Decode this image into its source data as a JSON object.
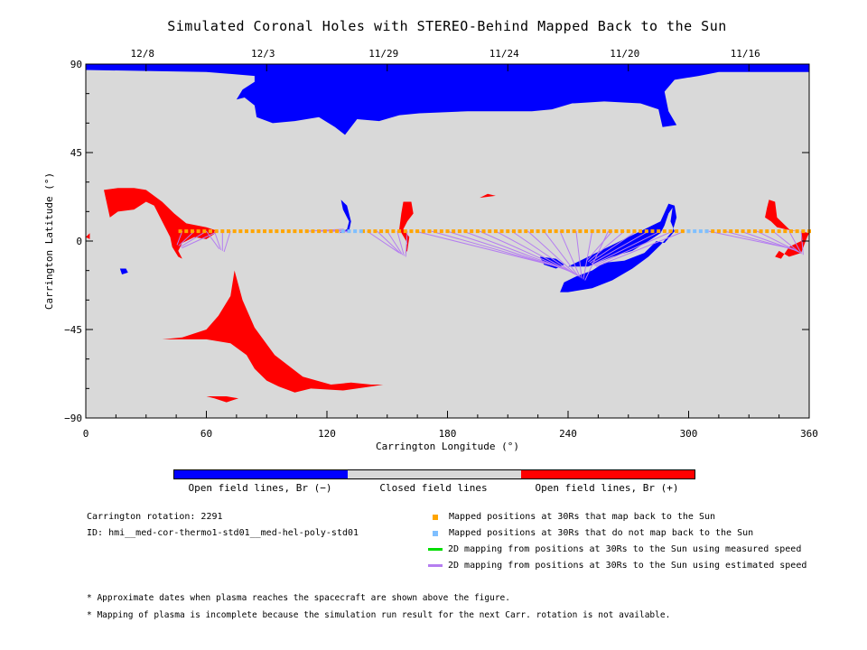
{
  "figure": {
    "title": "Simulated Coronal Holes with STEREO-Behind Mapped Back to the Sun"
  },
  "chart_data": {
    "type": "map",
    "xlabel": "Carrington Longitude (°)",
    "ylabel": "Carrington Latitude (°)",
    "xlim": [
      0,
      360
    ],
    "ylim": [
      -90,
      90
    ],
    "xticks": [
      0,
      60,
      120,
      180,
      240,
      300,
      360
    ],
    "yticks": [
      90,
      45,
      0,
      -45,
      -90
    ],
    "top_axis": {
      "dates": [
        {
          "label": "12/8",
          "lon": 30
        },
        {
          "label": "12/3",
          "lon": 90
        },
        {
          "label": "11/29",
          "lon": 150
        },
        {
          "label": "11/24",
          "lon": 210
        },
        {
          "label": "11/20",
          "lon": 270
        },
        {
          "label": "11/16",
          "lon": 330
        }
      ]
    },
    "colors": {
      "open_negative": "#0000ff",
      "closed": "#d9d9d9",
      "open_positive": "#ff0000",
      "mapped_back": "#ffa500",
      "not_mapped": "#7fbfff",
      "measured_speed": "#00dd00",
      "estimated_speed": "#b57ef0"
    },
    "regions": {
      "open_negative": [
        [
          [
            0,
            90
          ],
          [
            360,
            90
          ],
          [
            360,
            86
          ],
          [
            315,
            86
          ],
          [
            305,
            84
          ],
          [
            293,
            82
          ],
          [
            288,
            76
          ],
          [
            290,
            66
          ],
          [
            294,
            59
          ],
          [
            287,
            58
          ],
          [
            285,
            67
          ],
          [
            276,
            70
          ],
          [
            258,
            71
          ],
          [
            242,
            70
          ],
          [
            232,
            67
          ],
          [
            222,
            66
          ],
          [
            190,
            66
          ],
          [
            166,
            65
          ],
          [
            156,
            64
          ],
          [
            146,
            61
          ],
          [
            135,
            62
          ],
          [
            129,
            54
          ],
          [
            124,
            58
          ],
          [
            116,
            63
          ],
          [
            104,
            61
          ],
          [
            93,
            60
          ],
          [
            85,
            63
          ],
          [
            84,
            69
          ],
          [
            79,
            73
          ],
          [
            75,
            72
          ],
          [
            78,
            77
          ],
          [
            84,
            81
          ],
          [
            84,
            84
          ],
          [
            60,
            86
          ],
          [
            0,
            87
          ]
        ],
        [
          [
            240,
            -13
          ],
          [
            250,
            -13
          ],
          [
            262,
            -8
          ],
          [
            272,
            -5
          ],
          [
            280,
            0
          ],
          [
            286,
            4
          ],
          [
            288,
            8
          ],
          [
            290,
            14
          ],
          [
            292,
            17
          ],
          [
            291,
            10
          ],
          [
            293,
            5
          ],
          [
            288,
            -1
          ],
          [
            284,
            0
          ],
          [
            278,
            -6
          ],
          [
            268,
            -10
          ],
          [
            258,
            -11
          ],
          [
            252,
            -15
          ],
          [
            244,
            -18
          ],
          [
            238,
            -21
          ],
          [
            236,
            -26
          ],
          [
            240,
            -26
          ],
          [
            252,
            -24
          ],
          [
            262,
            -20
          ],
          [
            272,
            -14
          ],
          [
            280,
            -8
          ],
          [
            286,
            -2
          ],
          [
            292,
            5
          ],
          [
            294,
            12
          ],
          [
            293,
            18
          ],
          [
            290,
            19
          ],
          [
            286,
            10
          ]
        ],
        [
          [
            226,
            -8
          ],
          [
            234,
            -9
          ],
          [
            238,
            -12
          ],
          [
            234,
            -14
          ],
          [
            228,
            -12
          ]
        ],
        [
          [
            126,
            4
          ],
          [
            130,
            6
          ],
          [
            131,
            10
          ],
          [
            128,
            16
          ],
          [
            127,
            21
          ],
          [
            130,
            18
          ],
          [
            132,
            10
          ],
          [
            131,
            5
          ]
        ],
        [
          [
            17,
            -14
          ],
          [
            20,
            -14
          ],
          [
            21,
            -16
          ],
          [
            18,
            -17
          ]
        ]
      ],
      "open_positive": [
        [
          [
            9,
            26
          ],
          [
            16,
            27
          ],
          [
            24,
            27
          ],
          [
            30,
            26
          ],
          [
            38,
            20
          ],
          [
            44,
            14
          ],
          [
            50,
            9
          ],
          [
            60,
            7
          ],
          [
            66,
            5
          ],
          [
            60,
            1
          ],
          [
            54,
            2
          ],
          [
            48,
            -1
          ],
          [
            46,
            -5
          ],
          [
            48,
            -9
          ],
          [
            46,
            -8
          ],
          [
            43,
            -3
          ],
          [
            42,
            2
          ],
          [
            38,
            10
          ],
          [
            34,
            18
          ],
          [
            30,
            20
          ],
          [
            24,
            16
          ],
          [
            16,
            15
          ],
          [
            12,
            12
          ]
        ],
        [
          [
            74,
            -15
          ],
          [
            78,
            -30
          ],
          [
            84,
            -44
          ],
          [
            94,
            -58
          ],
          [
            108,
            -69
          ],
          [
            122,
            -73
          ],
          [
            132,
            -72
          ],
          [
            142,
            -73
          ],
          [
            148,
            -73
          ],
          [
            142,
            -74
          ],
          [
            128,
            -76
          ],
          [
            112,
            -75
          ],
          [
            104,
            -77
          ],
          [
            96,
            -74
          ],
          [
            90,
            -71
          ],
          [
            84,
            -65
          ],
          [
            80,
            -58
          ],
          [
            72,
            -52
          ],
          [
            60,
            -50
          ],
          [
            50,
            -50
          ],
          [
            38,
            -50
          ],
          [
            48,
            -49
          ],
          [
            60,
            -45
          ],
          [
            66,
            -38
          ],
          [
            72,
            -28
          ]
        ],
        [
          [
            60,
            -79
          ],
          [
            64,
            -80
          ],
          [
            70,
            -82
          ],
          [
            76,
            -80
          ],
          [
            70,
            -79
          ]
        ],
        [
          [
            162,
            20
          ],
          [
            163,
            14
          ],
          [
            160,
            10
          ],
          [
            158,
            6
          ],
          [
            161,
            2
          ],
          [
            160,
            -5
          ],
          [
            159,
            -6
          ],
          [
            160,
            -1
          ],
          [
            156,
            6
          ],
          [
            157,
            14
          ],
          [
            158,
            20
          ]
        ],
        [
          [
            340,
            21
          ],
          [
            343,
            20
          ],
          [
            344,
            12
          ],
          [
            350,
            6
          ],
          [
            354,
            5
          ],
          [
            348,
            6
          ],
          [
            344,
            7
          ],
          [
            341,
            10
          ],
          [
            338,
            12
          ],
          [
            339,
            17
          ]
        ],
        [
          [
            345,
            -5
          ],
          [
            350,
            -8
          ],
          [
            356,
            -6
          ],
          [
            359,
            2
          ],
          [
            360,
            4
          ],
          [
            356,
            5
          ],
          [
            356,
            0
          ],
          [
            350,
            -3
          ],
          [
            346,
            -9
          ],
          [
            343,
            -8
          ]
        ],
        [
          [
            196,
            22
          ],
          [
            200,
            24
          ],
          [
            204,
            23
          ]
        ],
        [
          [
            0,
            2
          ],
          [
            2,
            4
          ],
          [
            2,
            1
          ]
        ]
      ]
    },
    "mapped_positions": {
      "latitude": 5,
      "mapped_back_lon": [
        [
          47,
          128
        ],
        [
          138,
          300
        ],
        [
          309,
          360
        ]
      ],
      "not_mapped_lon": [
        [
          128,
          138
        ],
        [
          300,
          309
        ]
      ]
    },
    "carrington_rotation": "2291",
    "run_id": "hmi__med-cor-thermo1-std01__med-hel-poly-std01"
  },
  "colorbar": {
    "labels": [
      "Open field lines, Br (−)",
      "Closed field lines",
      "Open field lines, Br (+)"
    ]
  },
  "info": {
    "rotation_text": "Carrington rotation: 2291",
    "id_text": "ID: hmi__med-cor-thermo1-std01__med-hel-poly-std01"
  },
  "legend": [
    {
      "label": "Mapped positions at 30Rs that map back to the Sun",
      "kind": "square",
      "color": "#ffa500"
    },
    {
      "label": "Mapped positions at 30Rs that do not map back to the Sun",
      "kind": "square",
      "color": "#7fbfff"
    },
    {
      "label": "2D mapping from positions at 30Rs to the Sun using measured speed",
      "kind": "line",
      "color": "#00dd00"
    },
    {
      "label": "2D mapping from positions at 30Rs to the Sun using estimated speed",
      "kind": "line",
      "color": "#b57ef0"
    }
  ],
  "notes": [
    "* Approximate dates when plasma reaches the spacecraft are shown above the figure.",
    "* Mapping of plasma is incomplete because the simulation run result for the next Carr. rotation is not available."
  ]
}
